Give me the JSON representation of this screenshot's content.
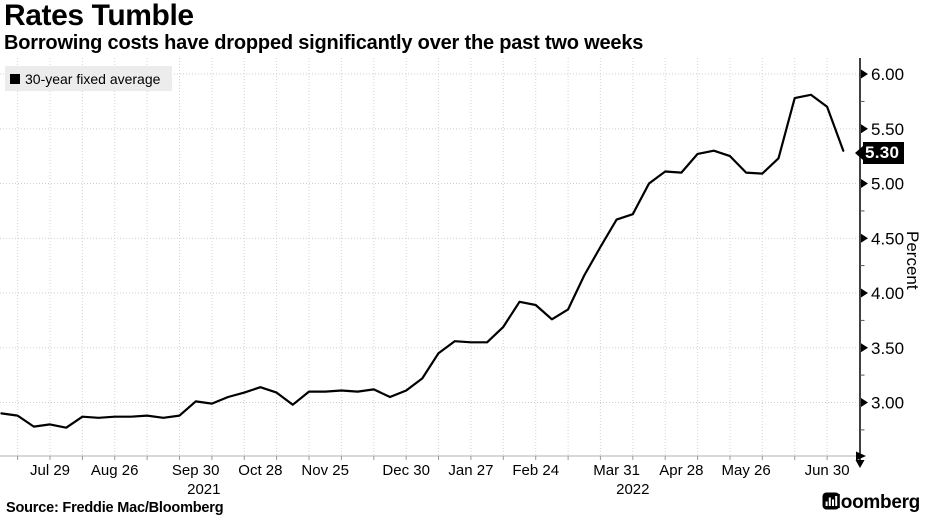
{
  "header": {
    "title": "Rates Tumble",
    "subtitle": "Borrowing costs have dropped significantly over the past two weeks"
  },
  "chart_data": {
    "type": "line",
    "title": "Rates Tumble",
    "subtitle": "Borrowing costs have dropped significantly over the past two weeks",
    "grid": true,
    "legend_position": "top-left",
    "last_value_label": "5.30",
    "series": [
      {
        "name": "30-year fixed average",
        "color": "#000000",
        "cadence": "weekly",
        "values": [
          2.9,
          2.88,
          2.78,
          2.8,
          2.77,
          2.87,
          2.86,
          2.87,
          2.87,
          2.88,
          2.86,
          2.88,
          3.01,
          2.99,
          3.05,
          3.09,
          3.14,
          3.09,
          2.98,
          3.1,
          3.1,
          3.11,
          3.1,
          3.12,
          3.05,
          3.11,
          3.22,
          3.45,
          3.56,
          3.55,
          3.55,
          3.69,
          3.92,
          3.89,
          3.76,
          3.85,
          4.16,
          4.42,
          4.67,
          4.72,
          5.0,
          5.11,
          5.1,
          5.27,
          5.3,
          5.25,
          5.1,
          5.09,
          5.23,
          5.78,
          5.81,
          5.7,
          5.3
        ]
      }
    ],
    "x_axis": {
      "ticks": [
        {
          "label": "Jul 29",
          "index": 3
        },
        {
          "label": "Aug 26",
          "index": 7
        },
        {
          "label": "Sep 30",
          "index": 12
        },
        {
          "label": "Oct 28",
          "index": 16
        },
        {
          "label": "Nov 25",
          "index": 20
        },
        {
          "label": "Dec 30",
          "index": 25
        },
        {
          "label": "Jan 27",
          "index": 29
        },
        {
          "label": "Feb 24",
          "index": 33
        },
        {
          "label": "Mar 31",
          "index": 38
        },
        {
          "label": "Apr 28",
          "index": 42
        },
        {
          "label": "May 26",
          "index": 46
        },
        {
          "label": "Jun 30",
          "index": 51
        }
      ],
      "year_ticks": [
        {
          "label": "2021",
          "index": 12.5
        },
        {
          "label": "2022",
          "index": 39
        }
      ]
    },
    "y_axis": {
      "label": "Percent",
      "side": "right",
      "ylim": [
        2.5,
        6.15
      ],
      "ticks": [
        {
          "label": "6.00",
          "value": 6.0
        },
        {
          "label": "5.50",
          "value": 5.5
        },
        {
          "label": "5.00",
          "value": 5.0
        },
        {
          "label": "4.50",
          "value": 4.5
        },
        {
          "label": "4.00",
          "value": 4.0
        },
        {
          "label": "3.50",
          "value": 3.5
        },
        {
          "label": "3.00",
          "value": 3.0
        }
      ],
      "minor_ticks": [
        5.75,
        5.25,
        4.75,
        4.25,
        3.75,
        3.25,
        2.75
      ]
    }
  },
  "footer": {
    "source": "Source: Freddie Mac/Bloomberg",
    "brand": "Bloomberg"
  }
}
